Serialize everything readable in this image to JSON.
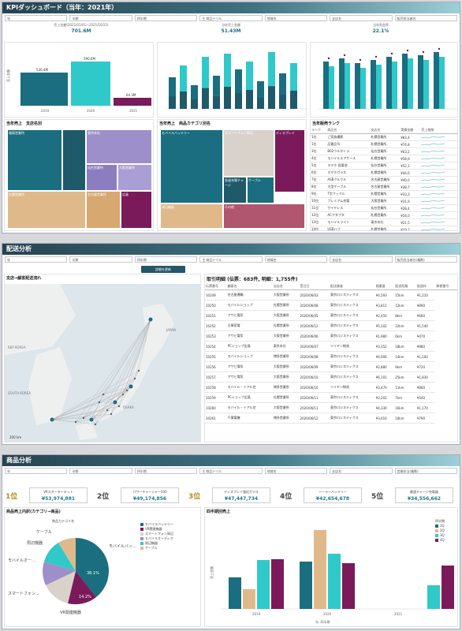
{
  "p1": {
    "title": "KPIダッシュボード（当年：2021年）",
    "filters": [
      "年",
      "半期",
      "四半期",
      "主 商品ドリル",
      "地域名",
      "支店名",
      "販売担当者名"
    ],
    "kpis": [
      {
        "label": "売上金額(2021/01/01〜2021/10/22)",
        "value": "701.6M"
      },
      {
        "label": "当年売上金額",
        "value": "51.43M"
      },
      {
        "label": "当年利益率",
        "value": "22.1%"
      }
    ],
    "c1": {
      "ytitle": "売上金額",
      "cats": [
        "2019",
        "2020",
        "2021"
      ],
      "labels": [
        "536.4M",
        "590.6M",
        "64.3M"
      ]
    },
    "tm1_title": "当年売上　支店名別",
    "tm1": [
      "福岡営業所",
      "東京本社",
      "大阪営業所",
      "札幌営業所",
      "仙台営業所",
      "名古屋営業所",
      "広島"
    ],
    "tm2_title": "当年売上　商品カテゴリ別名",
    "tm2": [
      "モバイルバッテリー",
      "スマートフォン周辺",
      "ディスプレイ",
      "周辺機器",
      "急速充電チャージ",
      "ケーブル",
      "その他"
    ],
    "ranking": {
      "title": "当年販売ランク",
      "headers": [
        "ランク",
        "商品名",
        "支店名",
        "実績金額",
        "売上推移"
      ],
      "rows": [
        [
          "1位",
          "ご家族撮影",
          "札幌営業所",
          "¥83,4"
        ],
        [
          "1位",
          "品番品号",
          "札幌営業所",
          "¥74,8"
        ],
        [
          "3位",
          "B02ウルタトラ",
          "仙台営業所",
          "¥63,2"
        ],
        [
          "4位",
          "モバイルエアケース",
          "札幌営業所",
          "¥58,9"
        ],
        [
          "5位",
          "スマホ 長電池",
          "仙台営業所",
          "¥52,1"
        ],
        [
          "6位",
          "スマホガラス",
          "札幌営業所",
          "¥44,6"
        ],
        [
          "7位",
          "ASBクルクル",
          "名古屋営業所",
          "¥40,0"
        ],
        [
          "8位",
          "大型ケーブル",
          "名古屋営業所",
          "¥38,7"
        ],
        [
          "9位",
          "T字フックル",
          "札幌営業所",
          "¥33,3"
        ],
        [
          "10位",
          "プレミアム充電",
          "大阪営業所",
          "¥31,9"
        ],
        [
          "11位",
          "ワイヤレス",
          "仙台営業所",
          "¥28,4"
        ],
        [
          "12位",
          "ACアダプタ",
          "札幌営業所",
          "¥24,0"
        ],
        [
          "13位",
          "モバイルライト",
          "東京本社",
          "¥21,5"
        ],
        [
          "14位",
          "USBハブ",
          "札幌営業所",
          "¥19,2"
        ]
      ]
    }
  },
  "p2": {
    "title": "配送分析",
    "filters": [
      "年",
      "半期",
      "四半期",
      "主 商品ドリル",
      "地域名",
      "支店名",
      "販売担当者名(複数)"
    ],
    "button": "詳細を更新",
    "map_title": "支店→顧客配送流れ",
    "map_labels": [
      "REP KOREA",
      "SOUTH KOREA",
      "JAPAN",
      "OSAKA",
      "200 km"
    ],
    "table_title": "取引明細 (伝票：683件, 明細：1,755件)",
    "headers": [
      "伝票番号",
      "顧客名",
      "支店名",
      "受注日",
      "配送業者",
      "総重量",
      "配送距離",
      "配送料",
      "郵便番号"
    ],
    "rows": [
      [
        "10249",
        "名古屋運輸",
        "大阪営業所",
        "2020/06/03",
        "東京ロジスティクス",
        "¥4,593",
        "15km",
        "¥1,210"
      ],
      [
        "10250",
        "モバイルショップ",
        "札幌営業所",
        "2020/06/08",
        "東京ロジスティクス",
        "¥3,811",
        "12km",
        "¥890"
      ],
      [
        "10251",
        "アサヒ電気",
        "大阪営業所",
        "2020/06/05",
        "東京ロジスティクス",
        "¥2,450",
        "8km",
        "¥660"
      ],
      [
        "10252",
        "日章家電",
        "札幌営業所",
        "2020/06/12",
        "東京ロジスティクス",
        "¥5,102",
        "22km",
        "¥1,540"
      ],
      [
        "10253",
        "アサヒ電気",
        "大阪営業所",
        "2020/06/06",
        "東京ロジスティクス",
        "¥1,980",
        "6km",
        "¥470"
      ],
      [
        "10254",
        "PCショップ広島",
        "東京本社",
        "2020/06/07",
        "ツイヤン物流",
        "¥3,352",
        "18km",
        "¥980"
      ],
      [
        "10255",
        "モバイルショップ",
        "博多営業所",
        "2020/06/08",
        "東京ロジスティクス",
        "¥4,006",
        "14km",
        "¥1,100"
      ],
      [
        "10256",
        "アサヒ電気",
        "大阪営業所",
        "2020/06/09",
        "東京ロジスティクス",
        "¥2,880",
        "9km",
        "¥720"
      ],
      [
        "10257",
        "アサヒ電気",
        "大阪営業所",
        "2020/06/10",
        "東京ロジスティクス",
        "¥6,101",
        "25km",
        "¥1,830"
      ],
      [
        "10258",
        "モバイル・トアル芝",
        "博多営業所",
        "2020/06/10",
        "ツイヤン物流",
        "¥3,470",
        "11km",
        "¥860"
      ],
      [
        "10259",
        "PCショップ広島",
        "札幌営業所",
        "2020/06/11",
        "東京ロジスティクス",
        "¥2,202",
        "7km",
        "¥540"
      ],
      [
        "10260",
        "モバイル・トアル芝",
        "大阪営業所",
        "2020/06/11",
        "東京ロジスティクス",
        "¥4,330",
        "16km",
        "¥1,170"
      ],
      [
        "10261",
        "千葉電機",
        "博多営業所",
        "2020/06/12",
        "東京ロジスティクス",
        "¥3,010",
        "10km",
        "¥790"
      ]
    ]
  },
  "p3": {
    "title": "商品分析",
    "filters": [
      "年",
      "半期",
      "四半期",
      "主 商品ドリル",
      "地域名",
      "支店名",
      "営業担当(複数)"
    ],
    "ranks": [
      {
        "rank": "1位",
        "name": "VRスターターキット",
        "value": "¥53,974,881"
      },
      {
        "rank": "2位",
        "name": "パワーチャージャー500",
        "value": "¥49,174,856"
      },
      {
        "rank": "3位",
        "name": "ディスプレイ強化ガラス",
        "value": "¥47,447,734"
      },
      {
        "rank": "4位",
        "name": "ソーラーバッテリー",
        "value": "¥42,654,678"
      },
      {
        "rank": "5位",
        "name": "最速チャージ充電器",
        "value": "¥34,556,662"
      }
    ],
    "pie_title": "商品売上内訳(カテゴリ→商品)",
    "pie_header": "商品カテゴリ名",
    "pie_labels": [
      "ケーブル",
      "周辺機器",
      "モバイルオー...",
      "スマートフォン...",
      "VR関連機器",
      "モバイルバッ..."
    ],
    "pie_values": [
      "38.1%",
      "14.2%"
    ],
    "legend": [
      "モバイルバッテリー",
      "VR関連機器",
      "スマートフォン周辺",
      "モバイルオーディオ",
      "周辺機器",
      "ケーブル"
    ],
    "bar_title": "四半期別売上",
    "bar_legend_title": "四半期",
    "bar_legend": [
      "1Q",
      "2Q",
      "3Q",
      "4Q"
    ],
    "bar_cats": [
      "2019",
      "2020",
      "2021"
    ],
    "ytitle": "売上金額",
    "xtitle": "年, 四半期"
  },
  "colors": {
    "teal": "#1a6e7f",
    "cyan": "#30c9c9",
    "purple": "#7a1a5b",
    "tan": "#e0b98a",
    "navy": "#1f5a6a",
    "lav": "#9d8fc9"
  }
}
